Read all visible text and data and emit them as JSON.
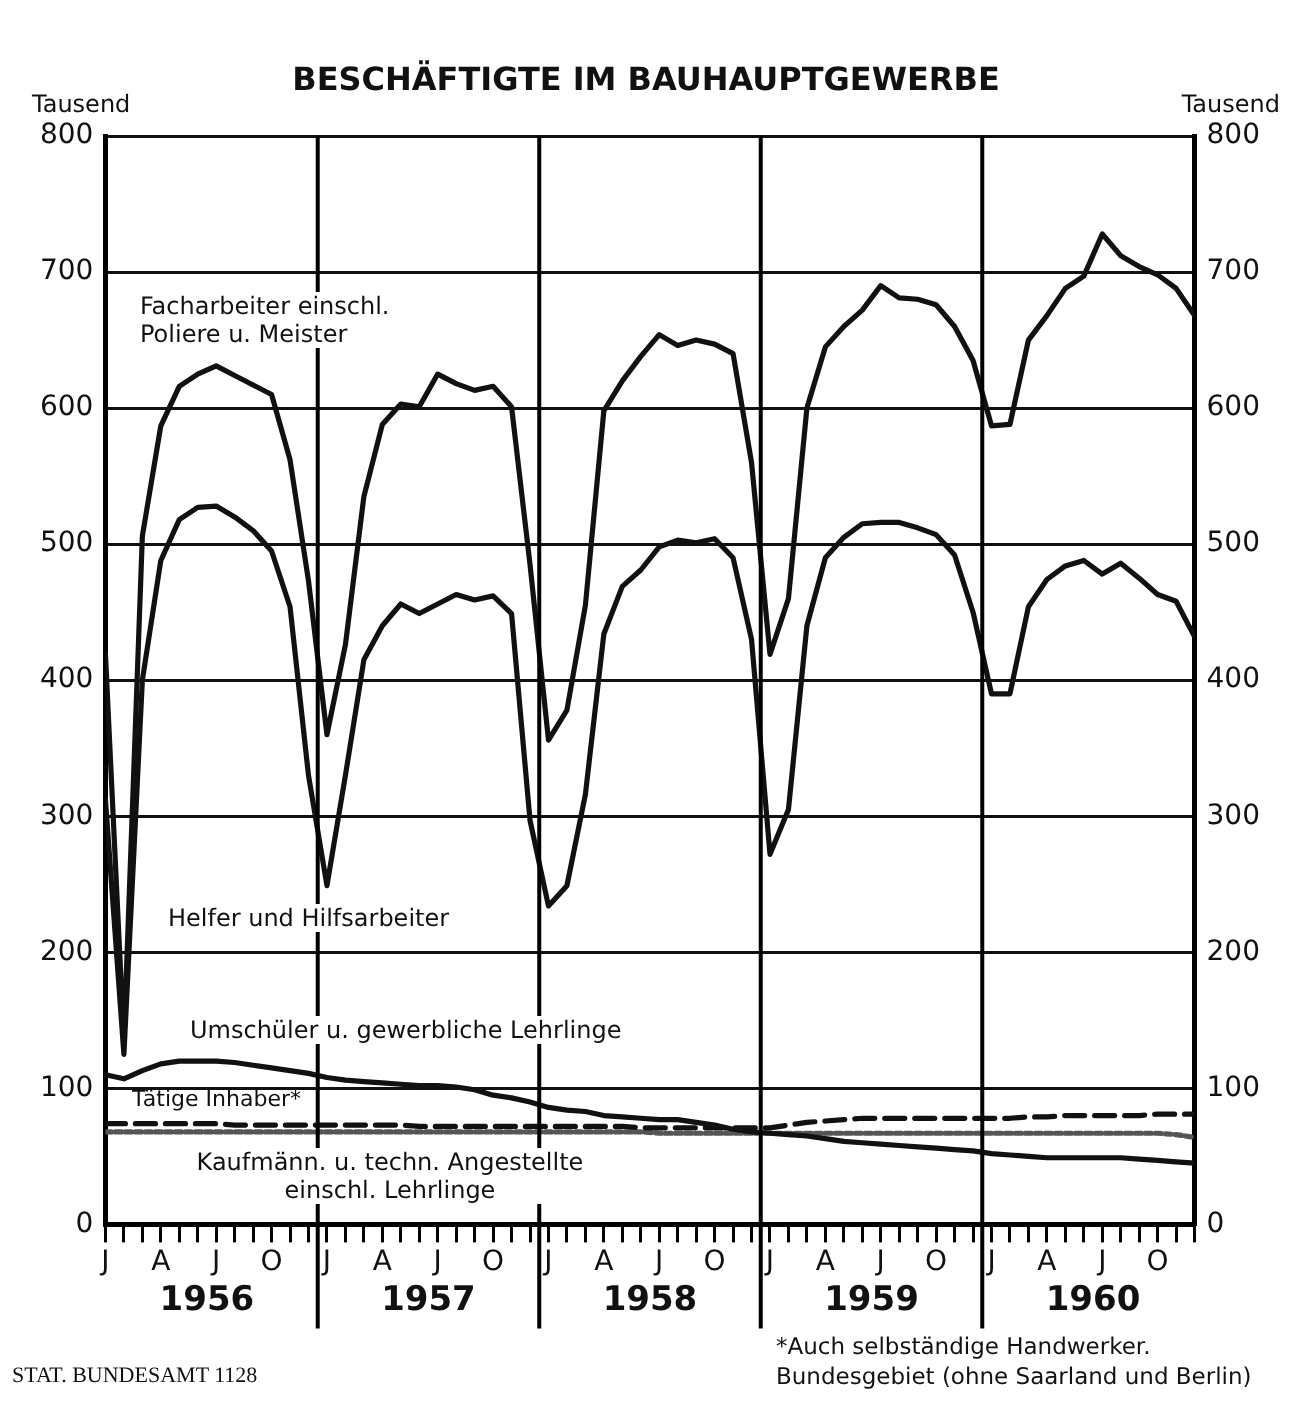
{
  "chart_data": {
    "type": "line",
    "title": "BESCHÄFTIGTE IM BAUHAUPTGEWERBE",
    "ylabel": "Tausend",
    "y2label": "Tausend",
    "categories": [
      "J",
      null,
      null,
      "A",
      null,
      null,
      "J",
      null,
      null,
      "O",
      null,
      null,
      "J",
      null,
      null,
      "A",
      null,
      null,
      "J",
      null,
      null,
      "O",
      null,
      null,
      "J",
      null,
      null,
      "A",
      null,
      null,
      "J",
      null,
      null,
      "O",
      null,
      null,
      "J",
      null,
      null,
      "A",
      null,
      null,
      "J",
      null,
      null,
      "O",
      null,
      null,
      "J",
      null,
      null,
      "A",
      null,
      null,
      "J",
      null,
      null,
      "O",
      null,
      null
    ],
    "series": [
      {
        "name": "Facharbeiter einschl. Poliere u. Meister",
        "color": "#111111",
        "line_style": "solid",
        "values": [
          419,
          135,
          506,
          587,
          616,
          625,
          631,
          624,
          617,
          610,
          562,
          473,
          360,
          426,
          535,
          588,
          603,
          601,
          625,
          618,
          613,
          616,
          601,
          485,
          356,
          378,
          455,
          598,
          620,
          638,
          654,
          646,
          650,
          647,
          640,
          560,
          419,
          460,
          600,
          645,
          660,
          672,
          690,
          681,
          680,
          676,
          660,
          635,
          587,
          588,
          650,
          668,
          688,
          697,
          728,
          712,
          704,
          698,
          688,
          668
        ]
      },
      {
        "name": "Helfer und Hilfsarbeiter",
        "color": "#111111",
        "line_style": "solid",
        "values": [
          312,
          125,
          400,
          488,
          518,
          527,
          528,
          520,
          510,
          495,
          454,
          330,
          249,
          330,
          415,
          440,
          456,
          449,
          456,
          463,
          459,
          462,
          449,
          297,
          234,
          249,
          316,
          434,
          469,
          481,
          498,
          503,
          501,
          504,
          490,
          430,
          272,
          305,
          440,
          490,
          505,
          515,
          516,
          516,
          512,
          507,
          492,
          450,
          390,
          390,
          454,
          474,
          484,
          488,
          478,
          486,
          475,
          463,
          458,
          432
        ]
      },
      {
        "name": "Umschüler u. gewerbliche Lehrlinge",
        "color": "#111111",
        "line_style": "solid",
        "values": [
          110,
          107,
          113,
          118,
          120,
          120,
          120,
          119,
          117,
          115,
          113,
          111,
          108,
          106,
          105,
          104,
          103,
          102,
          102,
          101,
          99,
          95,
          93,
          90,
          86,
          84,
          83,
          80,
          79,
          78,
          77,
          77,
          75,
          73,
          70,
          68,
          67,
          66,
          65,
          63,
          61,
          60,
          59,
          58,
          57,
          56,
          55,
          54,
          52,
          51,
          50,
          49,
          49,
          49,
          49,
          49,
          48,
          47,
          46,
          45
        ]
      },
      {
        "name": "Tätige Inhaber*",
        "color": "#111111",
        "line_style": "dashed",
        "values": [
          74,
          74,
          74,
          74,
          74,
          74,
          74,
          73,
          73,
          73,
          73,
          73,
          73,
          73,
          73,
          73,
          73,
          72,
          72,
          72,
          72,
          72,
          72,
          72,
          72,
          72,
          72,
          72,
          72,
          71,
          71,
          71,
          71,
          71,
          71,
          71,
          71,
          73,
          75,
          76,
          77,
          78,
          78,
          78,
          78,
          78,
          78,
          78,
          78,
          78,
          79,
          79,
          80,
          80,
          80,
          80,
          80,
          81,
          81,
          81
        ]
      },
      {
        "name": "Kaufmänn. u. techn. Angestellte einschl. Lehrlinge",
        "color": "#555555",
        "line_style": "dotted",
        "values": [
          68,
          68,
          68,
          68,
          68,
          68,
          68,
          68,
          68,
          68,
          68,
          68,
          68,
          68,
          68,
          68,
          68,
          68,
          68,
          68,
          68,
          68,
          68,
          68,
          68,
          68,
          68,
          68,
          68,
          68,
          67,
          67,
          67,
          67,
          67,
          67,
          67,
          67,
          67,
          67,
          67,
          67,
          67,
          67,
          67,
          67,
          67,
          67,
          67,
          67,
          67,
          67,
          67,
          67,
          67,
          67,
          67,
          67,
          66,
          64
        ]
      }
    ],
    "ylim": [
      0,
      800
    ],
    "yticks": [
      0,
      100,
      200,
      300,
      400,
      500,
      600,
      700,
      800
    ],
    "y2lim": [
      0,
      800
    ],
    "y2ticks": [
      0,
      100,
      200,
      300,
      400,
      500,
      600,
      700,
      800
    ],
    "annotations": [
      "1956",
      "1957",
      "1958",
      "1959",
      "1960",
      "STAT. BUNDESAMT 1128",
      "*Auch selbständige Handwerker.",
      "Bundesgebiet (ohne Saarland und Berlin)"
    ],
    "grid": "y",
    "legend": false,
    "marker": "none"
  }
}
